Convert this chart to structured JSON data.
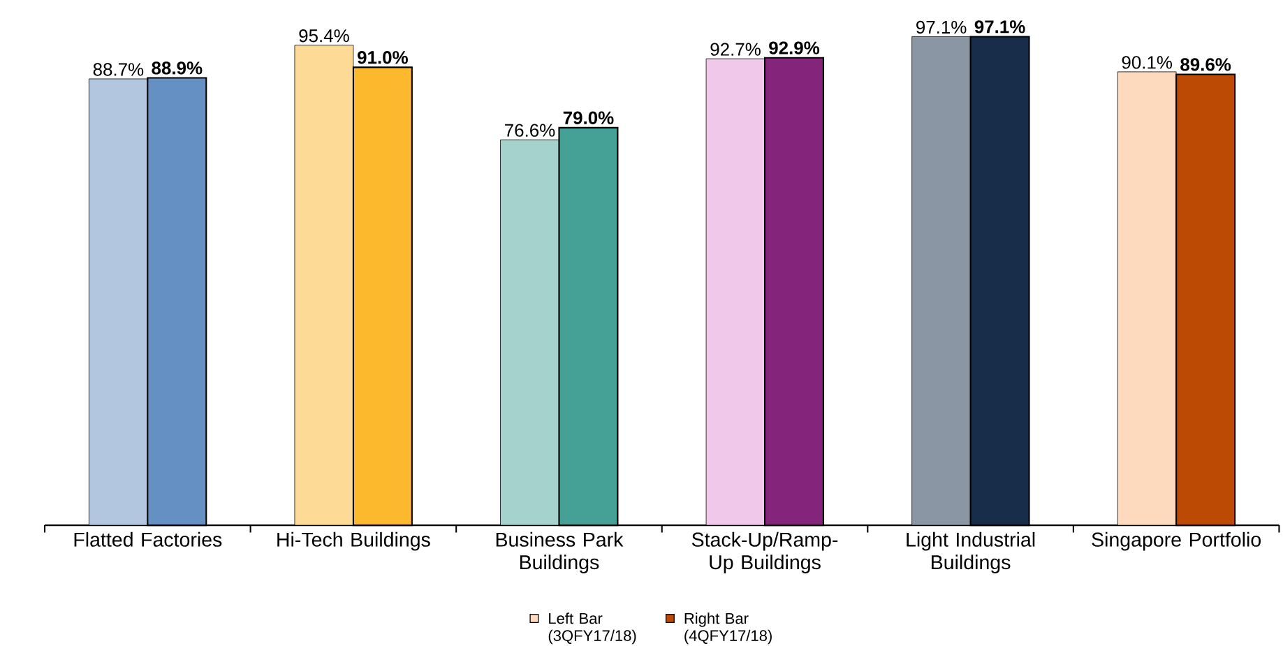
{
  "chart_data": {
    "type": "bar",
    "categories": [
      "Flatted Factories",
      "Hi-Tech Buildings",
      "Business Park Buildings",
      "Stack-Up/Ramp-Up Buildings",
      "Light Industrial Buildings",
      "Singapore Portfolio"
    ],
    "legend": "bottom",
    "grid": false,
    "series": [
      {
        "name": "Left Bar (3QFY17/18)",
        "color": "#fdd9bd",
        "colors": [
          "#b3c6e0",
          "#fddb96",
          "#a5d2cc",
          "#f0c8ea",
          "#8a96a4",
          "#fdd9bd"
        ],
        "values": [
          88.7,
          95.4,
          76.6,
          92.7,
          97.1,
          90.1
        ],
        "value_labels": [
          "88.7%",
          "95.4%",
          "76.6%",
          "92.7%",
          "97.1%",
          "90.1%"
        ]
      },
      {
        "name": "Right Bar (4QFY17/18)",
        "color": "#bd4a04",
        "colors": [
          "#6590c4",
          "#fdb92e",
          "#45a096",
          "#84247a",
          "#182d4a",
          "#bd4a04"
        ],
        "values": [
          88.9,
          91.0,
          79.0,
          92.9,
          97.1,
          89.6
        ],
        "value_labels": [
          "**88.9%**",
          "**91.0%**",
          "**79.0%**",
          "**92.9%**",
          "**97.1%**",
          "**89.6%**"
        ]
      }
    ]
  }
}
